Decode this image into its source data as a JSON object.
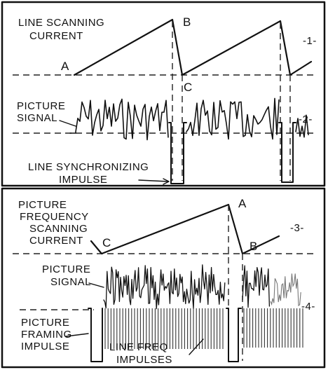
{
  "panel1": {
    "title_line1": "LINE SCANNING",
    "title_line2": "CURRENT",
    "point_a": "A",
    "point_b": "B",
    "point_c": "C",
    "figure_number": "-1-"
  },
  "panel2": {
    "signal_line1": "PICTURE",
    "signal_line2": "SIGNAL",
    "sync_line1": "LINE SYNCHRONIZING",
    "sync_line2": "IMPULSE",
    "figure_number": "-2-"
  },
  "panel3": {
    "title_line1": "PICTURE",
    "title_line2": "FREQUENCY",
    "title_line3": "SCANNING",
    "title_line4": "CURRENT",
    "point_a": "A",
    "point_b": "B",
    "point_c": "C",
    "figure_number": "-3-"
  },
  "panel4": {
    "signal_line1": "PICTURE",
    "signal_line2": "SIGNAL",
    "framing_line1": "PICTURE",
    "framing_line2": "FRAMING",
    "framing_line3": "IMPULSE",
    "impulses_line1": "LINE FREQ",
    "impulses_line2": "IMPULSES",
    "figure_number": "-4-"
  },
  "colors": {
    "ink": "#111111",
    "background": "#ffffff"
  }
}
